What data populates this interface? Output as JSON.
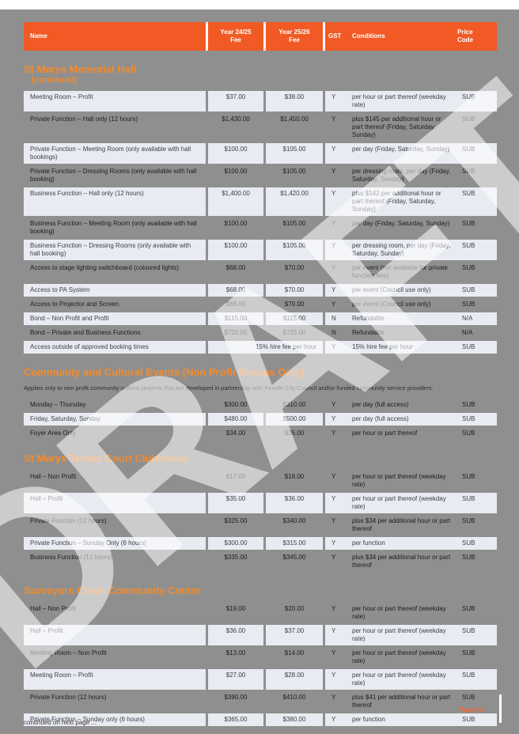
{
  "page": {
    "watermark": "DRAFT",
    "page_number": "Page 81",
    "footer_note": "continued on next page ...",
    "colors": {
      "page_bg": "#8f8f8f",
      "header_orange": "#f15a24",
      "section_orange": "#f68b28",
      "light_row": "#e9ebf2"
    }
  },
  "table_header": {
    "name": "Name",
    "fee1": "Year 24/25\nFee",
    "fee2": "Year 25/26\nFee",
    "gst": "GST",
    "conditions": "Conditions",
    "price": "Price\nCode"
  },
  "sections": [
    {
      "title": "St Marys Memorial Hall",
      "suffix": "[continued]",
      "note": "",
      "rows": [
        {
          "name": "Meeting Room – Profit",
          "fee1": "$37.00",
          "fee2": "$38.00",
          "gst": "Y",
          "conditions": "per hour or part thereof (weekday rate)",
          "code": "SUB",
          "shaded": false
        },
        {
          "name": "Private Function – Hall only (12 hours)",
          "fee1": "$1,430.00",
          "fee2": "$1,450.00",
          "gst": "Y",
          "conditions": "plus $145 per additional hour or part thereof (Friday, Saturday, Sunday)",
          "code": "SUB",
          "shaded": true
        },
        {
          "name": "Private Function – Meeting Room (only available with hall bookings)",
          "fee1": "$100.00",
          "fee2": "$105.00",
          "gst": "Y",
          "conditions": "per day (Friday, Saturday, Sunday)",
          "code": "SUB",
          "shaded": false
        },
        {
          "name": "Private Function – Dressing Rooms (only available with hall booking)",
          "fee1": "$100.00",
          "fee2": "$105.00",
          "gst": "Y",
          "conditions": "per dressing room, per day (Friday, Saturday, Sunday)",
          "code": "SUB",
          "shaded": true
        },
        {
          "name": "Business Function – Hall only (12 hours)",
          "fee1": "$1,400.00",
          "fee2": "$1,420.00",
          "gst": "Y",
          "conditions": "plus $142 per additional hour or part thereof (Friday, Saturday, Sunday)",
          "code": "SUB",
          "shaded": false
        },
        {
          "name": "Business Function – Meeting Room (only available with hall booking)",
          "fee1": "$100.00",
          "fee2": "$105.00",
          "gst": "Y",
          "conditions": "per day (Friday, Saturday, Sunday)",
          "code": "SUB",
          "shaded": true
        },
        {
          "name": "Business Function – Dressing Rooms (only available with hall booking)",
          "fee1": "$100.00",
          "fee2": "$105.00",
          "gst": "Y",
          "conditions": "per dressing room, per day (Friday, Saturday, Sunday)",
          "code": "SUB",
          "shaded": false
        },
        {
          "name": "Access to stage lighting switchboard (coloured lights)",
          "fee1": "$68.00",
          "fee2": "$70.00",
          "gst": "Y",
          "conditions": "per event (not available for private function hire)",
          "code": "SUB",
          "shaded": true
        },
        {
          "name": "Access to PA System",
          "fee1": "$68.00",
          "fee2": "$70.00",
          "gst": "Y",
          "conditions": "per event (Council use only)",
          "code": "SUB",
          "shaded": false
        },
        {
          "name": "Access to Projector and Screen",
          "fee1": "$68.00",
          "fee2": "$70.00",
          "gst": "Y",
          "conditions": "per event (Council use only)",
          "code": "SUB",
          "shaded": true
        },
        {
          "name": "Bond – Non Profit and Profit",
          "fee1": "$115.00",
          "fee2": "$115.00",
          "gst": "N",
          "conditions": "Refundable",
          "code": "N/A",
          "shaded": false
        },
        {
          "name": "Bond – Private and Business Functions",
          "fee1": "$725.00",
          "fee2": "$725.00",
          "gst": "N",
          "conditions": "Refundable",
          "code": "N/A",
          "shaded": true
        },
        {
          "name": "Access outside of approved booking times",
          "fee_span": "15% hire fee per hour",
          "gst": "Y",
          "conditions": "15% hire fee per hour",
          "code": "SUB",
          "shaded": false
        }
      ]
    },
    {
      "title": "Community and Cultural Events (Non Profit Groups Only)",
      "suffix": "",
      "note": "Applies only to non profit community cultural projects that are developed in partnership with Penrith City Council and/or funded community service providers.",
      "rows": [
        {
          "name": "Monday – Thursday",
          "fee1": "$300.00",
          "fee2": "$310.00",
          "gst": "Y",
          "conditions": "per day (full access)",
          "code": "SUB",
          "shaded": true
        },
        {
          "name": "Friday, Saturday, Sunday",
          "fee1": "$480.00",
          "fee2": "$500.00",
          "gst": "Y",
          "conditions": "per day (full access)",
          "code": "SUB",
          "shaded": false
        },
        {
          "name": "Foyer Area Only",
          "fee1": "$34.00",
          "fee2": "$35.00",
          "gst": "Y",
          "conditions": "per hour or part thereof",
          "code": "SUB",
          "shaded": true
        }
      ]
    },
    {
      "title": "St Marys Tennis Court Clubhouse",
      "suffix": "",
      "note": "",
      "rows": [
        {
          "name": "Hall – Non Profit",
          "fee1": "$17.00",
          "fee2": "$18.00",
          "gst": "Y",
          "conditions": "per hour or part thereof (weekday rate)",
          "code": "SUB",
          "shaded": true
        },
        {
          "name": "Hall – Profit",
          "fee1": "$35.00",
          "fee2": "$36.00",
          "gst": "Y",
          "conditions": "per hour or part thereof (weekday rate)",
          "code": "SUB",
          "shaded": false
        },
        {
          "name": "Private Function (12 hours)",
          "fee1": "$325.00",
          "fee2": "$340.00",
          "gst": "Y",
          "conditions": "plus $34 per additional hour or part thereof",
          "code": "SUB",
          "shaded": true
        },
        {
          "name": "Private Function – Sunday Only (6 hours)",
          "fee1": "$300.00",
          "fee2": "$315.00",
          "gst": "Y",
          "conditions": "per function",
          "code": "SUB",
          "shaded": false
        },
        {
          "name": "Business Function (12 hours)",
          "fee1": "$335.00",
          "fee2": "$345.00",
          "gst": "Y",
          "conditions": "plus $34 per additional hour or part thereof",
          "code": "SUB",
          "shaded": true
        }
      ]
    },
    {
      "title": "Surveyors Creek Community Centre",
      "suffix": "",
      "note": "",
      "rows": [
        {
          "name": "Hall – Non Profit",
          "fee1": "$19.00",
          "fee2": "$20.00",
          "gst": "Y",
          "conditions": "per hour or part thereof (weekday rate)",
          "code": "SUB",
          "shaded": true
        },
        {
          "name": "Hall – Profit",
          "fee1": "$36.00",
          "fee2": "$37.00",
          "gst": "Y",
          "conditions": "per hour or part thereof (weekday rate)",
          "code": "SUB",
          "shaded": false
        },
        {
          "name": "Meeting Room – Non Profit",
          "fee1": "$13.00",
          "fee2": "$14.00",
          "gst": "Y",
          "conditions": "per hour or part thereof (weekday rate)",
          "code": "SUB",
          "shaded": true
        },
        {
          "name": "Meeting Room – Profit",
          "fee1": "$27.00",
          "fee2": "$28.00",
          "gst": "Y",
          "conditions": "per hour or part thereof (weekday rate)",
          "code": "SUB",
          "shaded": false
        },
        {
          "name": "Private Function (12 hours)",
          "fee1": "$390.00",
          "fee2": "$410.00",
          "gst": "Y",
          "conditions": "plus $41 per additional hour or part thereof",
          "code": "SUB",
          "shaded": true
        },
        {
          "name": "Private Function – Sunday only (6 hours)",
          "fee1": "$365.00",
          "fee2": "$380.00",
          "gst": "Y",
          "conditions": "per function",
          "code": "SUB",
          "shaded": false
        }
      ]
    }
  ]
}
